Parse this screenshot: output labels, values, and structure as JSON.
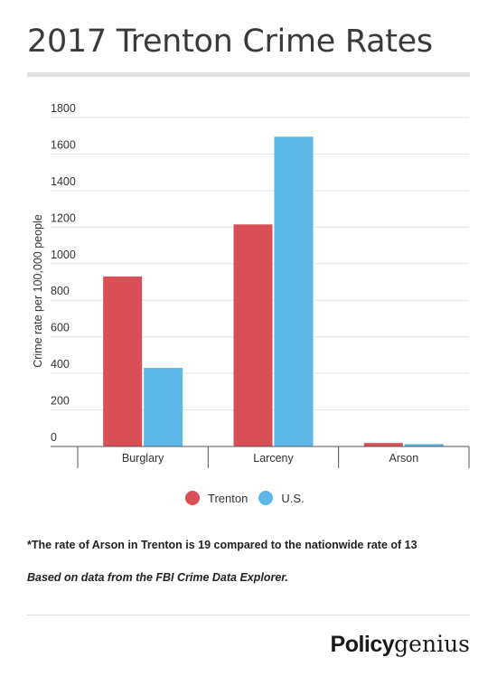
{
  "title": "2017 Trenton Crime Rates",
  "footnote": "*The rate of Arson in Trenton is 19 compared to the nationwide rate of 13",
  "source": "Based on data from the FBI Crime Data Explorer.",
  "brand": {
    "part1": "Policy",
    "part2": "genius"
  },
  "chart_data": {
    "type": "bar",
    "title": "2017 Trenton Crime Rates",
    "xlabel": "",
    "ylabel": "Crime rate per 100,000 people",
    "categories": [
      "Burglary",
      "Larceny",
      "Arson"
    ],
    "series": [
      {
        "name": "Trenton",
        "color": "#d94f55",
        "values": [
          930,
          1215,
          19
        ]
      },
      {
        "name": "U.S.",
        "color": "#5db7e8",
        "values": [
          430,
          1695,
          13
        ]
      }
    ],
    "ylim": [
      0,
      1800
    ],
    "yticks": [
      0,
      200,
      400,
      600,
      800,
      1000,
      1200,
      1400,
      1600,
      1800
    ],
    "grid": true,
    "legend_position": "bottom-center"
  }
}
